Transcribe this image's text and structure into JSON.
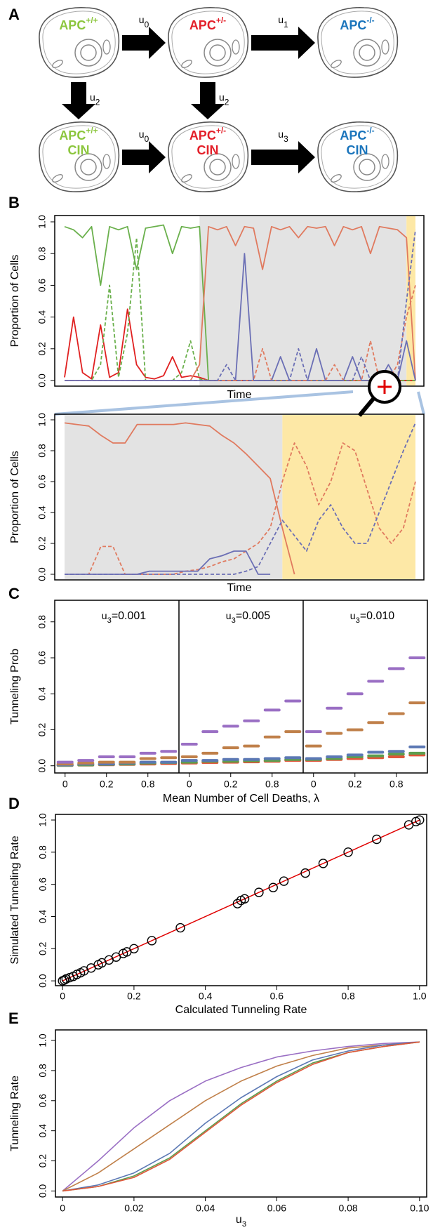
{
  "diagram": {
    "label": "A",
    "nodes": [
      {
        "name": "APC",
        "sup": "+/+",
        "color": "#8cc63e"
      },
      {
        "name": "APC",
        "sup": "+/-",
        "color": "#e3202a"
      },
      {
        "name": "APC",
        "sup": "-/-",
        "color": "#1b75bc"
      },
      {
        "name": "APC",
        "sup": "+/+",
        "line2": "CIN",
        "color": "#8cc63e"
      },
      {
        "name": "APC",
        "sup": "+/-",
        "line2": "CIN",
        "color": "#e3202a"
      },
      {
        "name": "APC",
        "sup": "-/-",
        "line2": "CIN",
        "color": "#1b75bc"
      }
    ],
    "edges": [
      {
        "base": "u",
        "sub": "0"
      },
      {
        "base": "u",
        "sub": "1"
      },
      {
        "base": "u",
        "sub": "2"
      },
      {
        "base": "u",
        "sub": "2"
      },
      {
        "base": "u",
        "sub": "0"
      },
      {
        "base": "u",
        "sub": "3"
      }
    ]
  },
  "chart_data": [
    {
      "type": "line",
      "label": "B",
      "y_label": "Proportion of Cells",
      "x_label": "Time",
      "ylim": [
        0,
        1
      ],
      "yticks": [
        {
          "value": 0,
          "label": "0.0"
        },
        0.2,
        0.4,
        0.6,
        0.8,
        {
          "value": 1,
          "label": "1.0"
        }
      ],
      "shading": [
        {
          "from": 15,
          "to": 38,
          "color": "#e3e3e3"
        },
        {
          "from": 38,
          "to": 39,
          "color": "#fde8a6"
        }
      ],
      "series": [
        {
          "color": "#6ab04c",
          "dash": false,
          "values": [
            0.97,
            0.95,
            0.9,
            0.97,
            0.6,
            0.97,
            0.95,
            0.97,
            0.7,
            0.96,
            0.97,
            0.98,
            0.8,
            0.97,
            0.96,
            0.97,
            0,
            0,
            0,
            0,
            0,
            0,
            0,
            0,
            0,
            0,
            0,
            0,
            0,
            0,
            0,
            0,
            0,
            0,
            0,
            0,
            0,
            0,
            0,
            0
          ]
        },
        {
          "color": "#e02020",
          "dash": false,
          "values": [
            0.02,
            0.4,
            0.05,
            0.01,
            0.35,
            0.02,
            0.05,
            0.45,
            0.1,
            0.02,
            0.01,
            0.03,
            0.15,
            0.02,
            0.03,
            0.02,
            0,
            0,
            0,
            0,
            0,
            0,
            0,
            0,
            0,
            0,
            0,
            0,
            0,
            0,
            0,
            0,
            0,
            0,
            0,
            0,
            0,
            0,
            0,
            0
          ]
        },
        {
          "color": "#6ab04c",
          "dash": true,
          "values": [
            0,
            0,
            0,
            0,
            0.1,
            0.6,
            0.02,
            0.3,
            0.9,
            0,
            0,
            0,
            0,
            0.05,
            0.25,
            0.01,
            0,
            0,
            0,
            0,
            0,
            0,
            0,
            0,
            0,
            0,
            0,
            0,
            0,
            0,
            0,
            0,
            0,
            0,
            0,
            0,
            0,
            0,
            0,
            0
          ]
        },
        {
          "color": "#e07a5f",
          "dash": false,
          "values": [
            0,
            0,
            0,
            0,
            0,
            0,
            0,
            0,
            0,
            0,
            0,
            0,
            0,
            0,
            0,
            0.1,
            0.97,
            0.95,
            0.97,
            0.85,
            0.97,
            0.96,
            0.7,
            0.97,
            0.95,
            0.97,
            0.9,
            0.97,
            0.96,
            0.97,
            0.85,
            0.97,
            0.95,
            0.97,
            0.8,
            0.97,
            0.96,
            0.95,
            0.9,
            0
          ]
        },
        {
          "color": "#6b6fb5",
          "dash": false,
          "values": [
            0,
            0,
            0,
            0,
            0,
            0,
            0,
            0,
            0,
            0,
            0,
            0,
            0,
            0,
            0,
            0,
            0,
            0,
            0,
            0,
            0.8,
            0,
            0,
            0,
            0.15,
            0,
            0,
            0,
            0.2,
            0,
            0,
            0,
            0.15,
            0,
            0,
            0,
            0.1,
            0,
            0.25,
            0
          ]
        },
        {
          "color": "#e07a5f",
          "dash": true,
          "values": [
            0,
            0,
            0,
            0,
            0,
            0,
            0,
            0,
            0,
            0,
            0,
            0,
            0,
            0,
            0,
            0,
            0,
            0,
            0,
            0,
            0,
            0,
            0.2,
            0,
            0,
            0,
            0,
            0,
            0,
            0,
            0.1,
            0,
            0,
            0,
            0.25,
            0,
            0,
            0.1,
            0.4,
            0.6
          ]
        },
        {
          "color": "#6b6fb5",
          "dash": true,
          "values": [
            0,
            0,
            0,
            0,
            0,
            0,
            0,
            0,
            0,
            0,
            0,
            0,
            0,
            0,
            0,
            0,
            0,
            0,
            0.1,
            0,
            0,
            0,
            0,
            0,
            0,
            0,
            0.2,
            0,
            0,
            0,
            0,
            0,
            0,
            0.15,
            0,
            0,
            0,
            0,
            0.5,
            0.95
          ]
        }
      ]
    },
    {
      "type": "line",
      "y_label": "Proportion of Cells",
      "x_label": "Time",
      "ylim": [
        0,
        1
      ],
      "yticks": [
        {
          "value": 0,
          "label": "0.0"
        },
        0.2,
        0.4,
        0.6,
        0.8,
        {
          "value": 1,
          "label": "1.0"
        }
      ],
      "shading": [
        {
          "from": 0,
          "to": 18,
          "color": "#e3e3e3"
        },
        {
          "from": 18,
          "to": 29,
          "color": "#fde8a6"
        }
      ],
      "series": [
        {
          "color": "#e07a5f",
          "dash": false,
          "values": [
            0.98,
            0.97,
            0.96,
            0.9,
            0.85,
            0.85,
            0.97,
            0.97,
            0.97,
            0.97,
            0.98,
            0.97,
            0.96,
            0.9,
            0.85,
            0.78,
            0.7,
            0.62,
            0.3,
            0,
            null,
            null,
            null,
            null,
            null,
            null,
            null,
            null,
            null,
            null
          ]
        },
        {
          "color": "#e07a5f",
          "dash": true,
          "values": [
            0,
            0,
            0,
            0.18,
            0.18,
            0,
            0,
            0,
            0,
            0,
            0.02,
            0.03,
            0.05,
            0.08,
            0.1,
            0.15,
            0.2,
            0.3,
            0.6,
            0.85,
            0.7,
            0.45,
            0.6,
            0.85,
            0.8,
            0.55,
            0.3,
            0.2,
            0.3,
            0.6
          ]
        },
        {
          "color": "#6b6fb5",
          "dash": true,
          "values": [
            0,
            0,
            0,
            0,
            0,
            0,
            0,
            0,
            0,
            0,
            0,
            0,
            0,
            0,
            0,
            0.02,
            0.05,
            0.2,
            0.35,
            0.25,
            0.15,
            0.35,
            0.45,
            0.3,
            0.2,
            0.2,
            0.4,
            0.6,
            0.8,
            0.98
          ]
        },
        {
          "color": "#6b6fb5",
          "dash": false,
          "values": [
            0,
            0,
            0,
            0,
            0,
            0,
            0,
            0.02,
            0.02,
            0.02,
            0.02,
            0.02,
            0.1,
            0.12,
            0.15,
            0.15,
            0,
            0,
            null,
            null,
            null,
            null,
            null,
            null,
            null,
            null,
            null,
            null,
            null,
            null
          ]
        }
      ]
    },
    {
      "type": "dot",
      "label": "C",
      "y_label": "Tunneling Prob",
      "x_label": "Mean Number of Cell Deaths, λ",
      "ylim": [
        -0.04,
        0.92
      ],
      "yticks": [
        {
          "value": 0,
          "label": "0.0"
        },
        0.2,
        0.4,
        0.6,
        0.8
      ],
      "categories": [
        "0",
        null,
        "0.2",
        null,
        "0.8",
        null
      ],
      "facets": [
        {
          "title": {
            "base": "u",
            "sub": "3",
            "text": "=0.001"
          },
          "series": [
            {
              "color": "#9a6fc4",
              "values": [
                0.02,
                0.03,
                0.05,
                0.05,
                0.07,
                0.08
              ]
            },
            {
              "color": "#c0804a",
              "values": [
                0.01,
                0.015,
                0.02,
                0.02,
                0.04,
                0.045
              ]
            },
            {
              "color": "#5b78b4",
              "values": [
                0.005,
                0.01,
                0.01,
                0.015,
                0.02,
                0.02
              ]
            },
            {
              "color": "#5d9e4e",
              "values": [
                0.003,
                0.005,
                0.008,
                0.01,
                0.015,
                0.018
              ]
            },
            {
              "color": "#e0563a",
              "values": [
                0.002,
                0.004,
                0.006,
                0.008,
                0.01,
                0.012
              ]
            }
          ]
        },
        {
          "title": {
            "base": "u",
            "sub": "3",
            "text": "=0.005"
          },
          "series": [
            {
              "color": "#9a6fc4",
              "values": [
                0.12,
                0.19,
                0.22,
                0.25,
                0.31,
                0.36
              ]
            },
            {
              "color": "#c0804a",
              "values": [
                0.05,
                0.07,
                0.1,
                0.11,
                0.16,
                0.19
              ]
            },
            {
              "color": "#5b78b4",
              "values": [
                0.03,
                0.03,
                0.035,
                0.035,
                0.04,
                0.045
              ]
            },
            {
              "color": "#5d9e4e",
              "values": [
                0.02,
                0.025,
                0.025,
                0.028,
                0.03,
                0.035
              ]
            },
            {
              "color": "#e0563a",
              "values": [
                0.015,
                0.018,
                0.02,
                0.022,
                0.025,
                0.03
              ]
            }
          ]
        },
        {
          "title": {
            "base": "u",
            "sub": "3",
            "text": "=0.010"
          },
          "series": [
            {
              "color": "#9a6fc4",
              "values": [
                0.19,
                0.32,
                0.4,
                0.47,
                0.54,
                0.6
              ]
            },
            {
              "color": "#c0804a",
              "values": [
                0.11,
                0.18,
                0.2,
                0.24,
                0.29,
                0.35
              ]
            },
            {
              "color": "#5b78b4",
              "values": [
                0.04,
                0.05,
                0.06,
                0.075,
                0.08,
                0.105
              ]
            },
            {
              "color": "#5d9e4e",
              "values": [
                0.035,
                0.04,
                0.05,
                0.055,
                0.065,
                0.07
              ]
            },
            {
              "color": "#e0563a",
              "values": [
                0.03,
                0.035,
                0.04,
                0.045,
                0.05,
                0.06
              ]
            }
          ]
        }
      ]
    },
    {
      "type": "scatter",
      "label": "D",
      "y_label": "Simulated Tunneling Rate",
      "x_label": "Calculated Tunneling Rate",
      "xlim": [
        -0.02,
        1.02
      ],
      "ylim": [
        -0.03,
        1.035
      ],
      "xticks": [
        0,
        0.2,
        0.4,
        0.6,
        0.8,
        {
          "value": 1,
          "label": "1.0"
        }
      ],
      "yticks": [
        {
          "value": 0,
          "label": "0.0"
        },
        0.2,
        0.4,
        0.6,
        0.8,
        {
          "value": 1,
          "label": "1.0"
        }
      ],
      "color": "#000000",
      "x": [
        0,
        0.005,
        0.01,
        0.02,
        0.03,
        0.04,
        0.05,
        0.06,
        0.08,
        0.1,
        0.11,
        0.13,
        0.15,
        0.17,
        0.18,
        0.2,
        0.25,
        0.33,
        0.49,
        0.5,
        0.51,
        0.55,
        0.59,
        0.62,
        0.68,
        0.73,
        0.8,
        0.88,
        0.97,
        0.99,
        1.0
      ],
      "values": [
        0,
        0.005,
        0.012,
        0.02,
        0.028,
        0.04,
        0.05,
        0.062,
        0.08,
        0.1,
        0.112,
        0.13,
        0.148,
        0.17,
        0.18,
        0.2,
        0.25,
        0.33,
        0.48,
        0.5,
        0.51,
        0.55,
        0.58,
        0.62,
        0.67,
        0.73,
        0.8,
        0.88,
        0.97,
        0.99,
        1.0
      ],
      "fit_line": {
        "color": "#e00000",
        "x": [
          0,
          1
        ],
        "y": [
          0,
          1
        ]
      }
    },
    {
      "type": "line",
      "label": "E",
      "y_label": "Tunneling Rate",
      "x_label": {
        "base": "u",
        "sub": "3"
      },
      "xlim": [
        -0.002,
        0.102
      ],
      "ylim": [
        -0.04,
        1.07
      ],
      "xticks": [
        0,
        0.02,
        0.04,
        0.06,
        0.08,
        {
          "value": 0.1,
          "label": "0.10"
        }
      ],
      "yticks": [
        {
          "value": 0,
          "label": "0.0"
        },
        0.2,
        0.4,
        0.6,
        0.8,
        {
          "value": 1,
          "label": "1.0"
        }
      ],
      "x": [
        0,
        0.01,
        0.02,
        0.03,
        0.04,
        0.05,
        0.06,
        0.07,
        0.08,
        0.09,
        0.1
      ],
      "series": [
        {
          "color": "#9a6fc4",
          "dash": false,
          "values": [
            0,
            0.2,
            0.42,
            0.6,
            0.73,
            0.82,
            0.89,
            0.93,
            0.96,
            0.98,
            0.99
          ]
        },
        {
          "color": "#c0804a",
          "dash": false,
          "values": [
            0,
            0.12,
            0.28,
            0.44,
            0.6,
            0.73,
            0.83,
            0.9,
            0.95,
            0.97,
            0.99
          ]
        },
        {
          "color": "#5b78b4",
          "dash": false,
          "values": [
            0,
            0.04,
            0.12,
            0.25,
            0.45,
            0.62,
            0.76,
            0.87,
            0.93,
            0.97,
            0.99
          ]
        },
        {
          "color": "#5d9e4e",
          "dash": false,
          "values": [
            0,
            0.03,
            0.1,
            0.22,
            0.4,
            0.58,
            0.73,
            0.85,
            0.92,
            0.96,
            0.99
          ]
        },
        {
          "color": "#e0563a",
          "dash": false,
          "values": [
            0,
            0.03,
            0.09,
            0.21,
            0.39,
            0.57,
            0.72,
            0.84,
            0.92,
            0.96,
            0.99
          ]
        }
      ]
    }
  ]
}
